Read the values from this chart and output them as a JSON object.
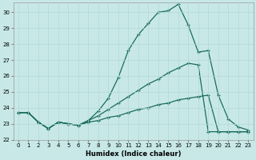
{
  "xlabel": "Humidex (Indice chaleur)",
  "bg_color": "#c8e8e8",
  "line_color": "#1a6b5a",
  "grid_color": "#b0d8d8",
  "xlim": [
    -0.5,
    23.5
  ],
  "ylim": [
    22.0,
    30.6
  ],
  "yticks": [
    22,
    23,
    24,
    25,
    26,
    27,
    28,
    29,
    30
  ],
  "xticks": [
    0,
    1,
    2,
    3,
    4,
    5,
    6,
    7,
    8,
    9,
    10,
    11,
    12,
    13,
    14,
    15,
    16,
    17,
    18,
    19,
    20,
    21,
    22,
    23
  ],
  "line1_x": [
    0,
    1,
    2,
    3,
    4,
    5,
    6,
    7,
    8,
    9,
    10,
    11,
    12,
    13,
    14,
    15,
    16,
    17,
    18,
    19,
    20,
    21,
    22,
    23
  ],
  "line1_y": [
    23.7,
    23.7,
    23.1,
    22.7,
    23.1,
    23.0,
    22.9,
    23.2,
    23.8,
    24.6,
    25.9,
    27.6,
    28.6,
    29.3,
    30.0,
    30.1,
    30.5,
    29.2,
    27.5,
    27.6,
    24.8,
    23.3,
    22.8,
    22.6
  ],
  "line2_x": [
    0,
    1,
    2,
    3,
    4,
    5,
    6,
    7,
    8,
    9,
    10,
    11,
    12,
    13,
    14,
    15,
    16,
    17,
    18,
    19,
    20,
    21,
    22,
    23
  ],
  "line2_y": [
    23.7,
    23.7,
    23.1,
    22.7,
    23.1,
    23.0,
    22.9,
    23.2,
    23.5,
    23.9,
    24.3,
    24.7,
    25.1,
    25.5,
    25.8,
    26.2,
    26.5,
    26.8,
    26.7,
    22.5,
    22.5,
    22.5,
    22.5,
    22.5
  ],
  "line3_x": [
    0,
    1,
    2,
    3,
    4,
    5,
    6,
    7,
    8,
    9,
    10,
    11,
    12,
    13,
    14,
    15,
    16,
    17,
    18,
    19,
    20,
    21,
    22,
    23
  ],
  "line3_y": [
    23.7,
    23.7,
    23.1,
    22.7,
    23.1,
    23.0,
    22.9,
    23.1,
    23.2,
    23.4,
    23.5,
    23.7,
    23.9,
    24.0,
    24.2,
    24.3,
    24.5,
    24.6,
    24.7,
    24.8,
    22.5,
    22.5,
    22.5,
    22.5
  ]
}
